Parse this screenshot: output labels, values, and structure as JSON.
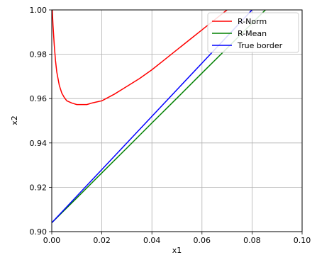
{
  "chart_data": {
    "type": "line",
    "title": "",
    "xlabel": "x1",
    "ylabel": "x2",
    "xlim": [
      0.0,
      0.1
    ],
    "ylim": [
      0.9,
      1.0
    ],
    "xticks": [
      0.0,
      0.02,
      0.04,
      0.06,
      0.08,
      0.1
    ],
    "xtick_labels": [
      "0.00",
      "0.02",
      "0.04",
      "0.06",
      "0.08",
      "0.10"
    ],
    "yticks": [
      0.9,
      0.92,
      0.94,
      0.96,
      0.98,
      1.0
    ],
    "ytick_labels": [
      "0.90",
      "0.92",
      "0.94",
      "0.96",
      "0.98",
      "1.00"
    ],
    "grid": true,
    "legend_position": "top-right",
    "series": [
      {
        "name": "R-Norm",
        "color": "#ff0000",
        "x": [
          0.0002,
          0.0005,
          0.001,
          0.0015,
          0.002,
          0.003,
          0.004,
          0.005,
          0.006,
          0.008,
          0.01,
          0.012,
          0.014,
          0.016,
          0.018,
          0.02,
          0.025,
          0.03,
          0.035,
          0.04,
          0.045,
          0.05,
          0.055,
          0.06,
          0.065,
          0.07
        ],
        "y": [
          1.0,
          0.993,
          0.984,
          0.977,
          0.972,
          0.966,
          0.9625,
          0.9605,
          0.959,
          0.958,
          0.9573,
          0.9573,
          0.9573,
          0.958,
          0.9585,
          0.959,
          0.962,
          0.9655,
          0.969,
          0.973,
          0.9775,
          0.982,
          0.9865,
          0.991,
          0.9955,
          1.0
        ]
      },
      {
        "name": "R-Mean",
        "color": "#008000",
        "x": [
          0.0,
          0.01,
          0.02,
          0.03,
          0.04,
          0.05,
          0.06,
          0.07,
          0.08,
          0.088
        ],
        "y": [
          0.904,
          0.9152,
          0.9265,
          0.9377,
          0.949,
          0.9602,
          0.9715,
          0.9827,
          0.994,
          1.003
        ]
      },
      {
        "name": "True border",
        "color": "#0000ff",
        "x": [
          0.0,
          0.02,
          0.04,
          0.06,
          0.08
        ],
        "y": [
          0.904,
          0.928,
          0.952,
          0.976,
          1.0
        ]
      }
    ]
  }
}
